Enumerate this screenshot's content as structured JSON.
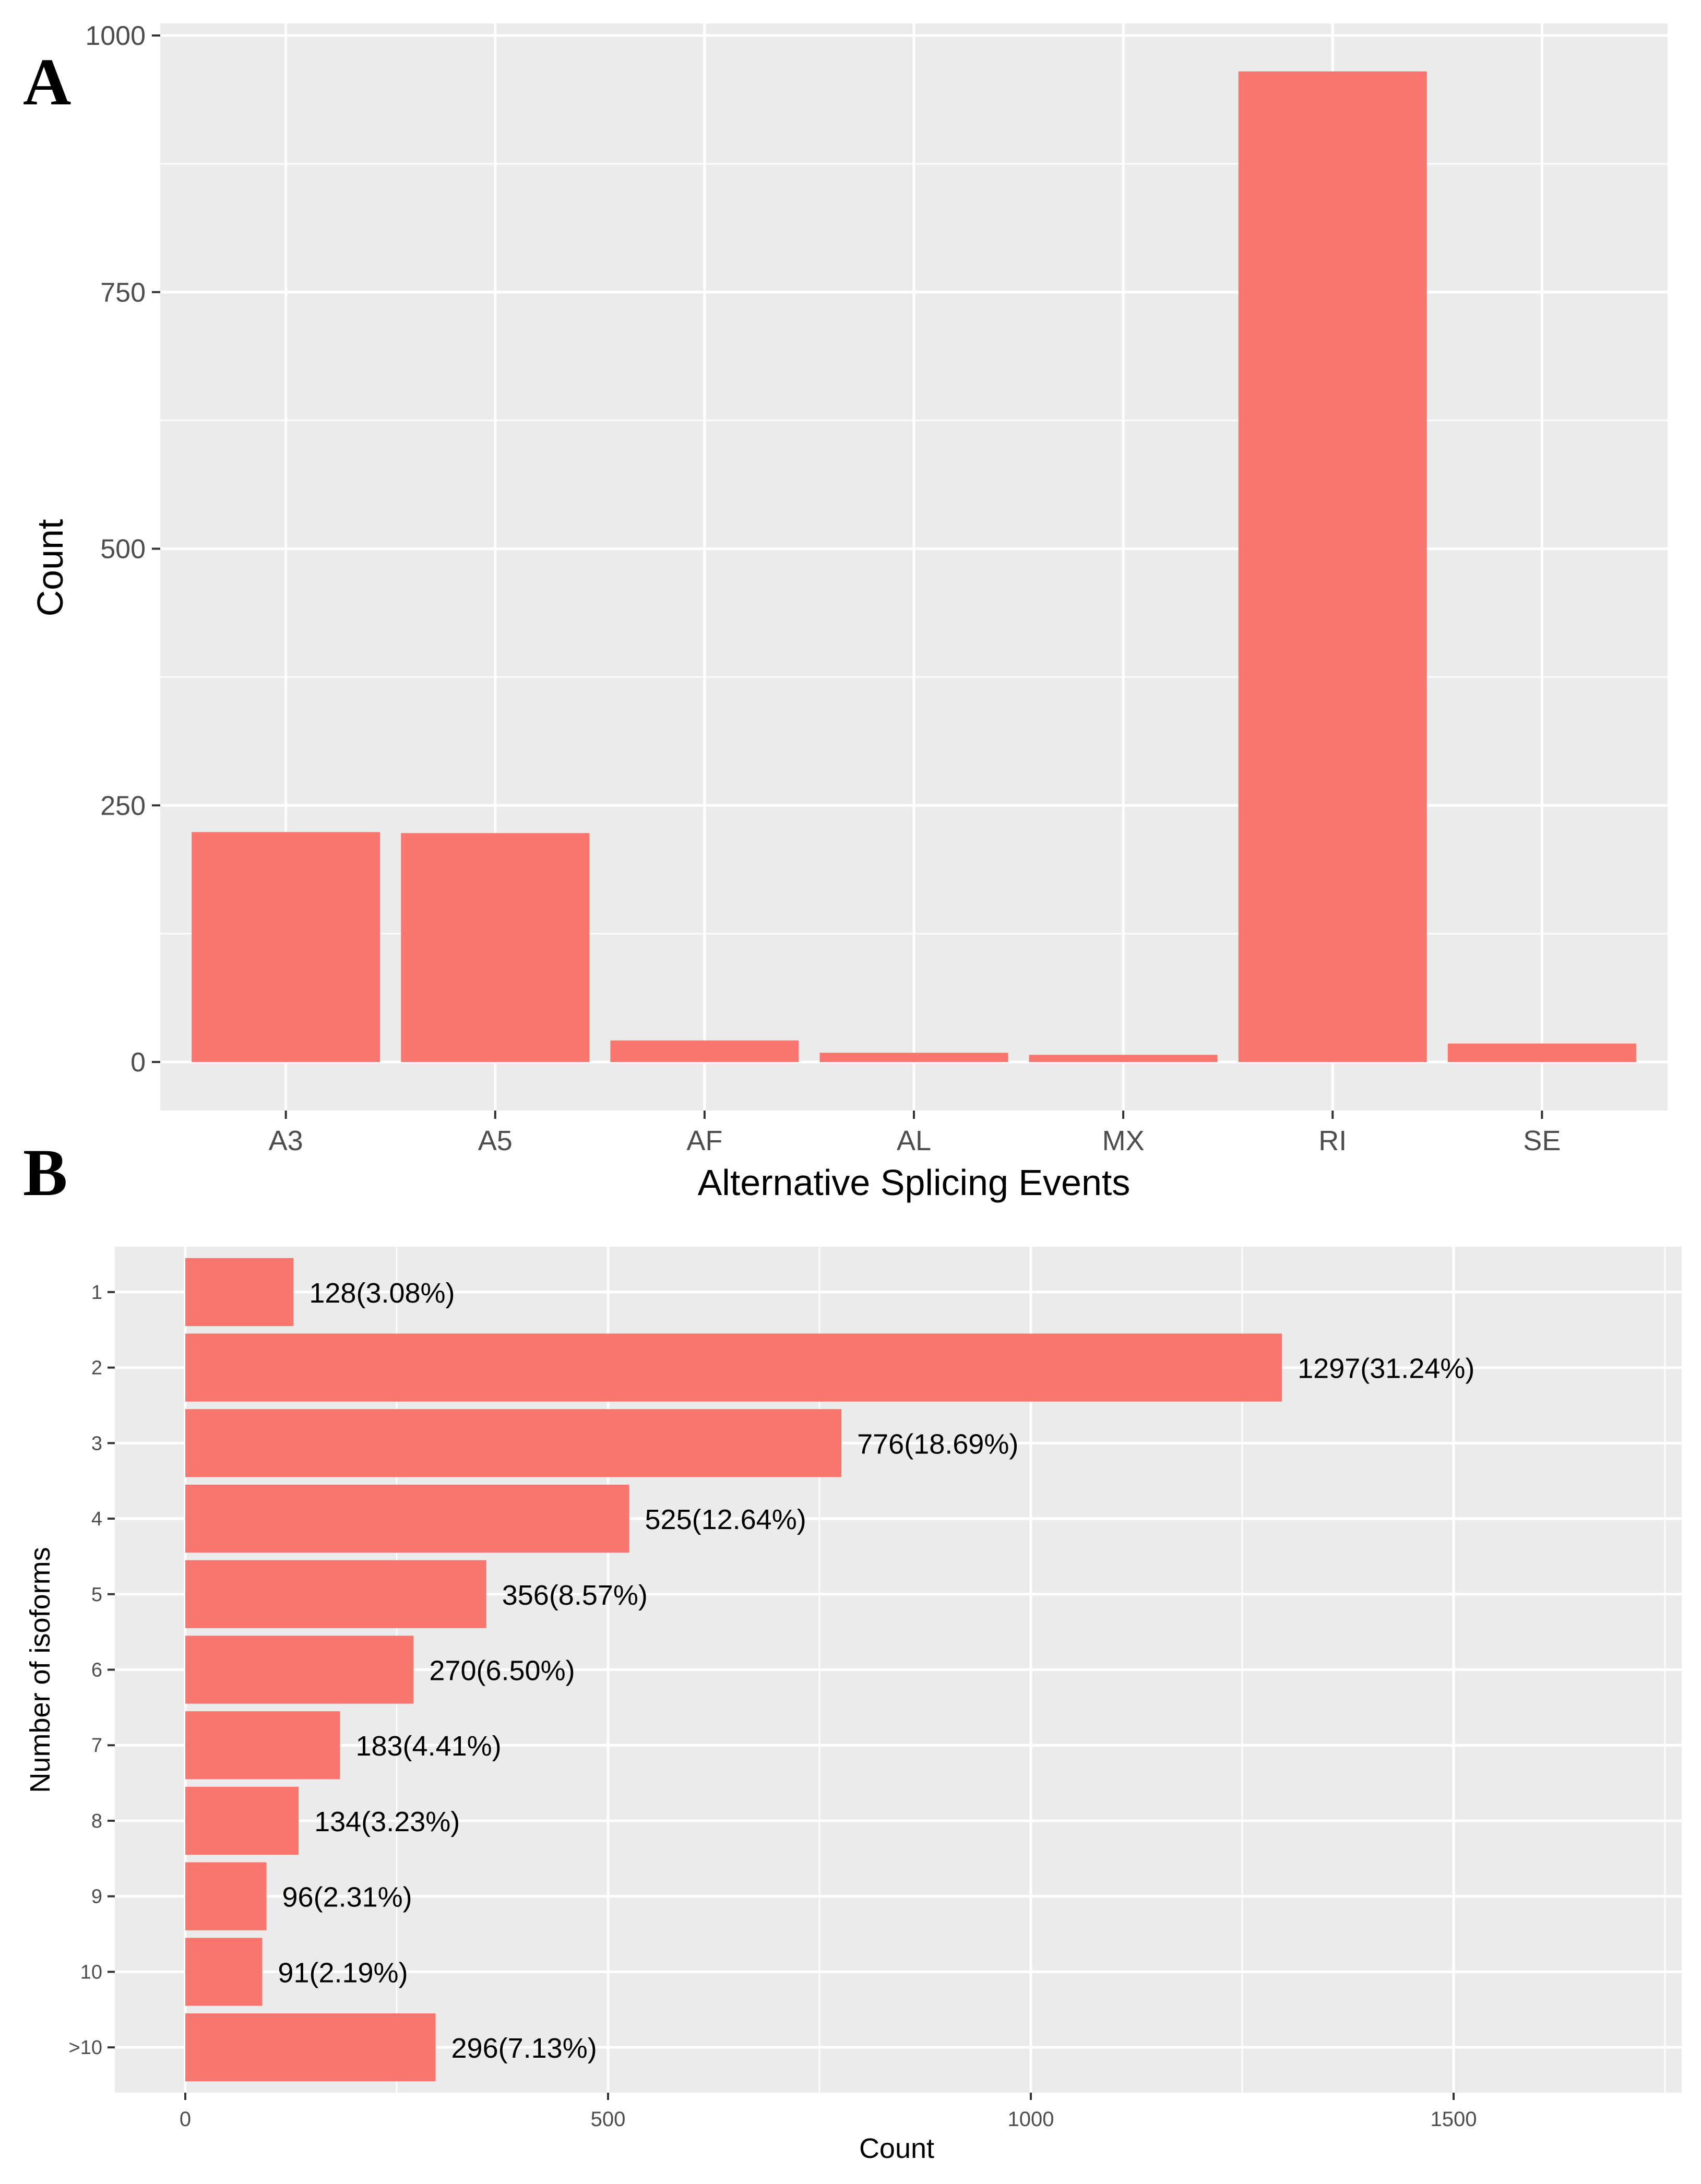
{
  "chart_data": [
    {
      "panel": "A",
      "type": "bar",
      "orientation": "vertical",
      "title": "",
      "xlabel": "Alternative Splicing Events",
      "ylabel": "Count",
      "categories": [
        "A3",
        "A5",
        "AF",
        "AL",
        "MX",
        "RI",
        "SE"
      ],
      "values": [
        224,
        223,
        21,
        9,
        7,
        965,
        18
      ],
      "ylim": [
        0,
        1000
      ],
      "yticks": [
        "0",
        "250",
        "500",
        "750",
        "1000"
      ],
      "bar_color": "#F8766D",
      "panel_bg": "#EBEBEB",
      "grid": true
    },
    {
      "panel": "B",
      "type": "bar",
      "orientation": "horizontal",
      "title": "",
      "xlabel": "Count",
      "ylabel": "Number of isoforms",
      "categories": [
        "1",
        "2",
        "3",
        "4",
        "5",
        "6",
        "7",
        "8",
        "9",
        "10",
        ">10"
      ],
      "values": [
        128,
        1297,
        776,
        525,
        356,
        270,
        183,
        134,
        96,
        91,
        296
      ],
      "labels": [
        "128(3.08%)",
        "1297(31.24%)",
        "776(18.69%)",
        "525(12.64%)",
        "356(8.57%)",
        "270(6.50%)",
        "183(4.41%)",
        "134(3.23%)",
        "96(2.31%)",
        "91(2.19%)",
        "296(7.13%)"
      ],
      "xlim": [
        0,
        1760
      ],
      "xticks": [
        "0",
        "500",
        "1000",
        "1500"
      ],
      "bar_color": "#F8766D",
      "panel_bg": "#EBEBEB",
      "grid": true
    }
  ]
}
